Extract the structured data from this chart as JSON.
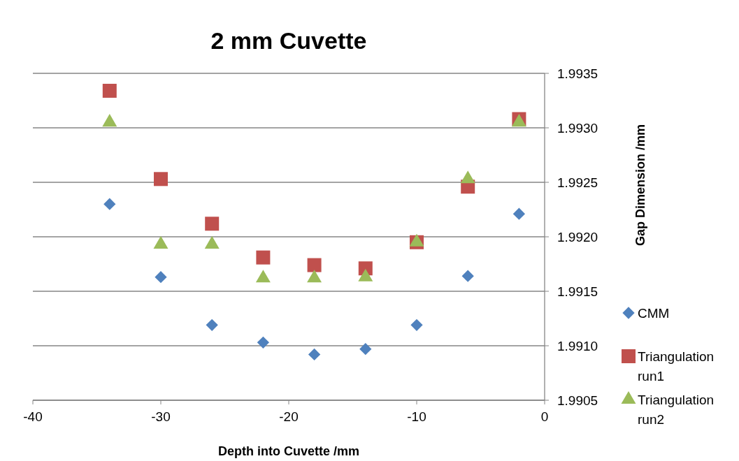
{
  "chart_data": {
    "type": "scatter",
    "title": "2 mm Cuvette",
    "xlabel": "Depth into Cuvette /mm",
    "y2label": "Gap Dimension /mm",
    "xlim": [
      -40,
      0
    ],
    "xticks": [
      -40,
      -30,
      -20,
      -10,
      0
    ],
    "y2lim": [
      1.9905,
      1.9935
    ],
    "y2ticks": [
      {
        "value": 1.9905,
        "label": "1.9905"
      },
      {
        "value": 1.991,
        "label": "1.9910"
      },
      {
        "value": 1.9915,
        "label": "1.9915"
      },
      {
        "value": 1.992,
        "label": "1.9920"
      },
      {
        "value": 1.9925,
        "label": "1.9925"
      },
      {
        "value": 1.993,
        "label": "1.9930"
      },
      {
        "value": 1.9935,
        "label": "1.9935"
      }
    ],
    "grid": "y",
    "legend": "right",
    "x": [
      -34,
      -30,
      -26,
      -22,
      -18,
      -14,
      -10,
      -6,
      -2
    ],
    "series": [
      {
        "name": "CMM",
        "color": "#4f81bd",
        "marker": "diamond",
        "axis": "y2",
        "values": [
          1.9923,
          1.99163,
          1.99119,
          1.99103,
          1.99092,
          1.99097,
          1.99119,
          1.99164,
          1.99221
        ]
      },
      {
        "name": "Triangulation run1",
        "color": "#c0504d",
        "marker": "square",
        "axis": "y2",
        "values": [
          1.99334,
          1.99253,
          1.99212,
          1.99181,
          1.99174,
          1.99171,
          1.99195,
          1.99246,
          1.99308
        ]
      },
      {
        "name": "Triangulation run2",
        "color": "#9bbb59",
        "marker": "triangle",
        "axis": "y2",
        "values": [
          1.99305,
          1.99193,
          1.99193,
          1.99162,
          1.99162,
          1.99163,
          1.99195,
          1.99253,
          1.99305
        ]
      }
    ]
  }
}
